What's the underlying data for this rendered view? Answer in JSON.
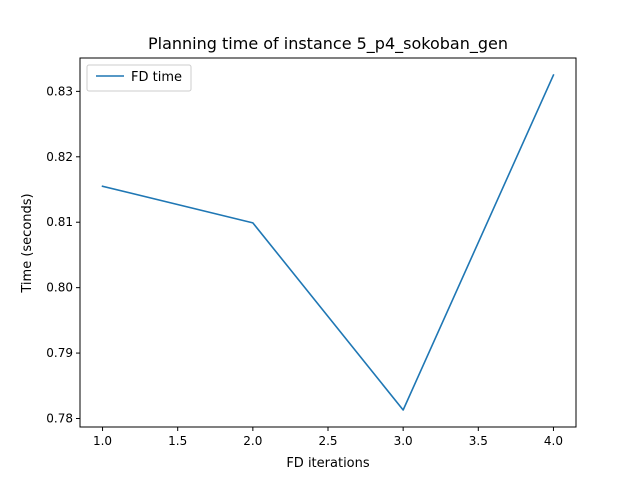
{
  "chart_data": {
    "type": "line",
    "title": "Planning time of instance 5_p4_sokoban_gen",
    "xlabel": "FD iterations",
    "ylabel": "Time (seconds)",
    "x": [
      1.0,
      2.0,
      3.0,
      4.0
    ],
    "series": [
      {
        "name": "FD time",
        "values": [
          0.8155,
          0.8099,
          0.7813,
          0.8325
        ],
        "color": "#1f77b4"
      }
    ],
    "xlim": [
      0.85,
      4.15
    ],
    "ylim": [
      0.7787,
      0.8351
    ],
    "xticks": [
      1.0,
      1.5,
      2.0,
      2.5,
      3.0,
      3.5,
      4.0
    ],
    "xtick_labels": [
      "1.0",
      "1.5",
      "2.0",
      "2.5",
      "3.0",
      "3.5",
      "4.0"
    ],
    "yticks": [
      0.78,
      0.79,
      0.8,
      0.81,
      0.82,
      0.83
    ],
    "ytick_labels": [
      "0.78",
      "0.79",
      "0.80",
      "0.81",
      "0.82",
      "0.83"
    ],
    "grid": false,
    "legend_position": "top-left"
  }
}
